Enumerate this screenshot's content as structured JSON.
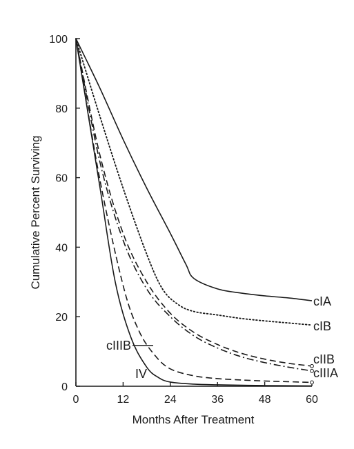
{
  "chart_data": {
    "type": "line",
    "title": "",
    "xlabel": "Months After Treatment",
    "ylabel": "Cumulative Percent Surviving",
    "xlim": [
      0,
      60
    ],
    "ylim": [
      0,
      100
    ],
    "xticks": [
      0,
      12,
      24,
      36,
      48,
      60
    ],
    "yticks": [
      0,
      20,
      40,
      60,
      80,
      100
    ],
    "grid": false,
    "legend": "none",
    "series": [
      {
        "name": "cIA",
        "style": "solid",
        "color": "#1a1a1a",
        "x": [
          0,
          6,
          12,
          18,
          24,
          28,
          30,
          36,
          42,
          48,
          54,
          60
        ],
        "y": [
          100,
          86,
          71,
          57,
          44,
          35,
          31,
          28,
          26.8,
          26,
          25.4,
          24.6
        ]
      },
      {
        "name": "cIB",
        "style": "dotted",
        "color": "#1a1a1a",
        "x": [
          0,
          6,
          12,
          18,
          22,
          26,
          30,
          36,
          42,
          48,
          54,
          60
        ],
        "y": [
          100,
          78,
          57,
          38,
          28,
          23.5,
          21.5,
          20.5,
          19.5,
          18.8,
          18.2,
          17.6
        ]
      },
      {
        "name": "cIIB",
        "style": "dashed",
        "color": "#1a1a1a",
        "x": [
          0,
          6,
          12,
          18,
          24,
          30,
          36,
          42,
          48,
          54,
          60
        ],
        "y": [
          100,
          67,
          44,
          30,
          21,
          15.5,
          12,
          9.5,
          7.8,
          6.6,
          5.8
        ]
      },
      {
        "name": "cIIIA",
        "style": "dashdot",
        "color": "#1a1a1a",
        "x": [
          0,
          6,
          12,
          18,
          24,
          30,
          36,
          42,
          48,
          54,
          60
        ],
        "y": [
          100,
          65,
          42,
          28,
          20,
          14.5,
          11,
          8.5,
          6.8,
          5.5,
          4.4
        ]
      },
      {
        "name": "cIIIB",
        "style": "dashed",
        "color": "#1a1a1a",
        "x": [
          0,
          6,
          12,
          16,
          20,
          24,
          30,
          36,
          42,
          48,
          54,
          60
        ],
        "y": [
          100,
          60,
          29,
          16,
          9,
          5,
          3,
          2.2,
          1.8,
          1.5,
          1.3,
          1.1
        ]
      },
      {
        "name": "IV",
        "style": "solid",
        "color": "#1a1a1a",
        "x": [
          0,
          6,
          10,
          14,
          18,
          21,
          24,
          30,
          36,
          48,
          60
        ],
        "y": [
          100,
          58,
          30,
          14,
          5.5,
          2.5,
          1.2,
          0.6,
          0.4,
          0.2,
          0.1
        ]
      }
    ]
  }
}
